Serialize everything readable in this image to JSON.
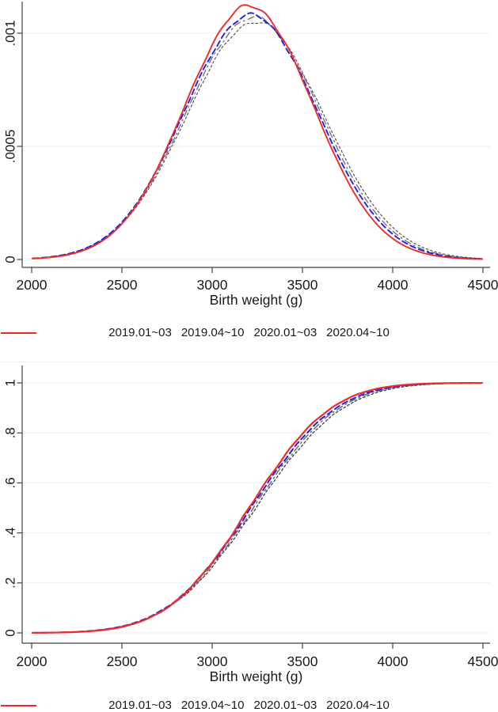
{
  "figure": {
    "background": "#ffffff",
    "text_color": "#1a1a1a",
    "axis_color": "#424242",
    "grid_color": "#e4f0f0",
    "legend": {
      "items": [
        {
          "label": "2019.01~03",
          "color": "#474747",
          "style": "dotted"
        },
        {
          "label": "2019.04~10",
          "color": "#6e6e6e",
          "style": "dashdot"
        },
        {
          "label": "2020.01~03",
          "color": "#2222dd",
          "style": "dashed"
        },
        {
          "label": "2020.04~10",
          "color": "#ee2b2b",
          "style": "solid"
        }
      ]
    }
  },
  "chart_data": [
    {
      "id": "density",
      "type": "line",
      "curve": "pdf",
      "title": "",
      "xlabel": "Birth weight (g)",
      "ylabel": "",
      "xlim": [
        2000,
        4500
      ],
      "ylim": [
        0,
        0.00115
      ],
      "grid": "horizontal",
      "legend_position": "bottom",
      "x_ticks": [
        {
          "v": 2000,
          "label": "2000"
        },
        {
          "v": 2500,
          "label": "2500"
        },
        {
          "v": 3000,
          "label": "3000"
        },
        {
          "v": 3500,
          "label": "3500"
        },
        {
          "v": 4000,
          "label": "4000"
        },
        {
          "v": 4500,
          "label": "4500"
        }
      ],
      "y_ticks": [
        {
          "v": 0,
          "label": "0"
        },
        {
          "v": 0.0005,
          "label": ".0005"
        },
        {
          "v": 0.001,
          "label": ".001"
        }
      ],
      "series": [
        {
          "name": "2019.01~03",
          "style": "dotted",
          "color": "#474747",
          "gauss": {
            "mean": 3240,
            "sd": 380,
            "peak": 0.00105
          },
          "points": [
            [
              2000,
              5.1e-06
            ],
            [
              2250,
              3.53e-05
            ],
            [
              2500,
              0.000158
            ],
            [
              2750,
              0.000457
            ],
            [
              3000,
              0.00086
            ],
            [
              3250,
              0.00105
            ],
            [
              3500,
              0.000831
            ],
            [
              3750,
              0.000427
            ],
            [
              4000,
              0.000142
            ],
            [
              4250,
              3.07e-05
            ],
            [
              4500,
              4.3e-06
            ]
          ]
        },
        {
          "name": "2019.04~10",
          "style": "dashdot",
          "color": "#6e6e6e",
          "gauss": {
            "mean": 3228,
            "sd": 373,
            "peak": 0.00107
          },
          "points": [
            [
              2000,
              4.7e-06
            ],
            [
              2250,
              3.45e-05
            ],
            [
              2500,
              0.000159
            ],
            [
              2750,
              0.000471
            ],
            [
              3000,
              0.000888
            ],
            [
              3250,
              0.001068
            ],
            [
              3500,
              0.00082
            ],
            [
              3750,
              0.000402
            ],
            [
              4000,
              0.000126
            ],
            [
              4250,
              2.5e-05
            ],
            [
              4500,
              3.2e-06
            ]
          ]
        },
        {
          "name": "2020.01~03",
          "style": "dashed",
          "color": "#2222dd",
          "gauss": {
            "mean": 3215,
            "sd": 369,
            "peak": 0.00108
          },
          "points": [
            [
              2000,
              4.8e-06
            ],
            [
              2250,
              3.53e-05
            ],
            [
              2500,
              0.000165
            ],
            [
              2750,
              0.000488
            ],
            [
              3000,
              0.000911
            ],
            [
              3250,
              0.001075
            ],
            [
              3500,
              0.000802
            ],
            [
              3750,
              0.000378
            ],
            [
              4000,
              0.000112
            ],
            [
              4250,
              2.12e-05
            ],
            [
              4500,
              2.5e-06
            ]
          ]
        },
        {
          "name": "2020.04~10",
          "style": "solid",
          "color": "#ee2b2b",
          "gauss": {
            "mean": 3205,
            "sd": 356,
            "peak": 0.00112
          },
          "points": [
            [
              2000,
              3.6e-06
            ],
            [
              2250,
              3.06e-05
            ],
            [
              2500,
              0.000158
            ],
            [
              2750,
              0.000495
            ],
            [
              3000,
              0.000949
            ],
            [
              3250,
              0.001111
            ],
            [
              3500,
              0.000794
            ],
            [
              3750,
              0.000347
            ],
            [
              4000,
              9.26e-05
            ],
            [
              4250,
              1.51e-05
            ],
            [
              4500,
              1.5e-06
            ]
          ]
        }
      ]
    },
    {
      "id": "cdf",
      "type": "line",
      "curve": "cdf",
      "title": "",
      "xlabel": "Birth weight (g)",
      "ylabel": "",
      "xlim": [
        2000,
        4500
      ],
      "ylim": [
        0,
        1
      ],
      "grid": "horizontal",
      "legend_position": "bottom",
      "x_ticks": [
        {
          "v": 2000,
          "label": "2000"
        },
        {
          "v": 2500,
          "label": "2500"
        },
        {
          "v": 3000,
          "label": "3000"
        },
        {
          "v": 3500,
          "label": "3500"
        },
        {
          "v": 4000,
          "label": "4000"
        },
        {
          "v": 4500,
          "label": "4500"
        }
      ],
      "y_ticks": [
        {
          "v": 0,
          "label": "0"
        },
        {
          "v": 0.2,
          "label": ".2"
        },
        {
          "v": 0.4,
          "label": ".4"
        },
        {
          "v": 0.6,
          "label": ".6"
        },
        {
          "v": 0.8,
          "label": ".8"
        },
        {
          "v": 1,
          "label": "1"
        }
      ],
      "series": [
        {
          "name": "2019.01~03",
          "style": "dotted",
          "color": "#474747",
          "gauss": {
            "mean": 3240,
            "sd": 380
          },
          "points": [
            [
              2000,
              0.0006
            ],
            [
              2250,
              0.0046
            ],
            [
              2500,
              0.0258
            ],
            [
              2750,
              0.0988
            ],
            [
              3000,
              0.2637
            ],
            [
              3250,
              0.5104
            ],
            [
              3500,
              0.7527
            ],
            [
              3750,
              0.9101
            ],
            [
              4000,
              0.9772
            ],
            [
              4250,
              0.9961
            ],
            [
              4500,
              0.9995
            ]
          ]
        },
        {
          "name": "2019.04~10",
          "style": "dashdot",
          "color": "#6e6e6e",
          "gauss": {
            "mean": 3228,
            "sd": 373
          },
          "points": [
            [
              2000,
              0.0005
            ],
            [
              2250,
              0.0044
            ],
            [
              2500,
              0.0255
            ],
            [
              2750,
              0.1001
            ],
            [
              3000,
              0.2705
            ],
            [
              3250,
              0.5235
            ],
            [
              3500,
              0.767
            ],
            [
              3750,
              0.9192
            ],
            [
              4000,
              0.9807
            ],
            [
              4250,
              0.9969
            ],
            [
              4500,
              0.9997
            ]
          ]
        },
        {
          "name": "2020.01~03",
          "style": "dashed",
          "color": "#2222dd",
          "gauss": {
            "mean": 3215,
            "sd": 369
          },
          "points": [
            [
              2000,
              0.0005
            ],
            [
              2250,
              0.0044
            ],
            [
              2500,
              0.0263
            ],
            [
              2750,
              0.1039
            ],
            [
              3000,
              0.2801
            ],
            [
              3250,
              0.5378
            ],
            [
              3500,
              0.7799
            ],
            [
              3750,
              0.9265
            ],
            [
              4000,
              0.9833
            ],
            [
              4250,
              0.9975
            ],
            [
              4500,
              0.9998
            ]
          ]
        },
        {
          "name": "2020.04~10",
          "style": "solid",
          "color": "#ee2b2b",
          "gauss": {
            "mean": 3205,
            "sd": 356
          },
          "points": [
            [
              2000,
              0.0004
            ],
            [
              2250,
              0.0036
            ],
            [
              2500,
              0.0239
            ],
            [
              2750,
              0.1007
            ],
            [
              3000,
              0.2823
            ],
            [
              3250,
              0.5502
            ],
            [
              3500,
              0.7965
            ],
            [
              3750,
              0.937
            ],
            [
              4000,
              0.9872
            ],
            [
              4250,
              0.9983
            ],
            [
              4500,
              0.9999
            ]
          ]
        }
      ]
    }
  ]
}
